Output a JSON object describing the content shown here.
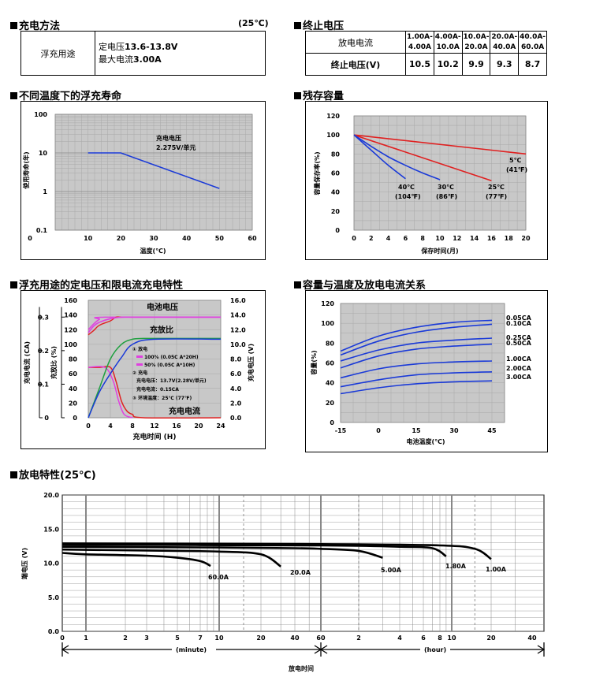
{
  "charging_method": {
    "title": "充电方法",
    "temp": "(25℃)",
    "row_label": "浮充用途",
    "line1_label": "定电压",
    "line1_value": "13.6-13.8V",
    "line2_label": "最大电流",
    "line2_value": "3.00A"
  },
  "cutoff_voltage": {
    "title": "终止电压",
    "row1_label": "放电电流",
    "row2_label": "终止电压(V)",
    "currents": [
      [
        "1.00A-",
        "4.00A"
      ],
      [
        "4.00A-",
        "10.0A"
      ],
      [
        "10.0A-",
        "20.0A"
      ],
      [
        "20.0A-",
        "40.0A"
      ],
      [
        "40.0A-",
        "60.0A"
      ]
    ],
    "voltages": [
      "10.5",
      "10.2",
      "9.9",
      "9.3",
      "8.7"
    ]
  },
  "float_life": {
    "title": "不同温度下的浮充寿命",
    "ylabel": "使用寿命(年)",
    "xlabel": "温度(℃)",
    "annotation_line1": "充电电压",
    "annotation_line2": "2.275V/单元",
    "y_ticks": [
      "100",
      "10",
      "1",
      "0.1"
    ],
    "x_ticks": [
      "10",
      "20",
      "30",
      "40",
      "50",
      "60"
    ]
  },
  "retention": {
    "title": "残存容量",
    "ylabel": "容量保存率(%)",
    "xlabel": "保存时间(月)",
    "y_ticks": [
      "120",
      "100",
      "80",
      "60",
      "40",
      "20",
      "0"
    ],
    "x_ticks": [
      "0",
      "2",
      "4",
      "6",
      "8",
      "10",
      "12",
      "14",
      "16",
      "18",
      "20"
    ],
    "labels": [
      {
        "c": "5℃",
        "f": "(41℉)"
      },
      {
        "c": "25℃",
        "f": "(77℉)"
      },
      {
        "c": "30℃",
        "f": "(86℉)"
      },
      {
        "c": "40℃",
        "f": "(104℉)"
      }
    ]
  },
  "float_charge": {
    "title": "浮充用途的定电压和限电流充电特性",
    "ylabel_current": "充电电流 (CA)",
    "ylabel_ratio": "充放比 (%)",
    "ylabel_voltage": "充电电压 (V)",
    "xlabel": "充电时间 (H)",
    "label_voltage": "电池电压",
    "label_ratio": "充放比",
    "label_current": "充电电流",
    "legend": [
      "① 放电",
      "100% (0.05C A*20H)",
      "50% (0.05C A*10H)",
      "② 充电",
      "充电电压：13.7V(2.28V/单元)",
      "充电电流：0.15CA",
      "③ 环境温度：25℃ (77℉)"
    ],
    "left_ticks_ratio": [
      "160",
      "140",
      "120",
      "100",
      "80",
      "60",
      "40",
      "20",
      "0"
    ],
    "left_ticks_current": [
      "0.3",
      "0.2",
      "0.1",
      "0"
    ],
    "right_ticks": [
      "16.0",
      "14.0",
      "12.0",
      "10.0",
      "8.0",
      "6.0",
      "4.0",
      "2.0",
      "0.0"
    ],
    "x_ticks": [
      "0",
      "4",
      "8",
      "12",
      "16",
      "20",
      "24"
    ]
  },
  "capacity_temp": {
    "title": "容量与温度及放电电流关系",
    "ylabel": "容量(%)",
    "xlabel": "电池温度(℃)",
    "y_ticks": [
      "120",
      "100",
      "80",
      "60",
      "40",
      "20",
      "0"
    ],
    "x_ticks": [
      "-15",
      "0",
      "15",
      "30",
      "45"
    ],
    "series_labels": [
      "0.05CA",
      "0.10CA",
      "0.25CA",
      "0.50CA",
      "1.00CA",
      "2.00CA",
      "3.00CA"
    ]
  },
  "discharge": {
    "title": "放电特性",
    "title_suffix": "(25℃)",
    "ylabel": "端电压 (V)",
    "xlabel": "放电时间",
    "unit_minute": "(minute)",
    "unit_hour": "(hour)",
    "y_ticks": [
      "20.0",
      "15.0",
      "10.0",
      "5.0",
      "0.0"
    ],
    "x_ticks_min": [
      "0",
      "1",
      "2",
      "3",
      "5",
      "7",
      "10",
      "20",
      "40",
      "60"
    ],
    "x_ticks_hour": [
      "2",
      "4",
      "6",
      "8",
      "10",
      "20",
      "40"
    ],
    "curve_labels": [
      "60.0A",
      "20.0A",
      "5.00A",
      "1.80A",
      "1.00A"
    ]
  },
  "chart_data": [
    {
      "type": "line",
      "title": "不同温度下的浮充寿命",
      "xlabel": "温度(℃)",
      "ylabel": "使用寿命(年)",
      "xlim": [
        0,
        60
      ],
      "ylim": [
        0.1,
        100
      ],
      "y_scale": "log",
      "grid": true,
      "series": [
        {
          "x": [
            10,
            20,
            50
          ],
          "y": [
            10,
            10,
            1.2
          ]
        }
      ]
    },
    {
      "type": "line",
      "title": "残存容量",
      "xlabel": "保存时间(月)",
      "ylabel": "容量保存率(%)",
      "xlim": [
        0,
        20
      ],
      "ylim": [
        0,
        120
      ],
      "grid": true,
      "series": [
        {
          "name": "5℃ (41℉)",
          "x": [
            0,
            20
          ],
          "y": [
            100,
            80
          ]
        },
        {
          "name": "25℃ (77℉)",
          "x": [
            0,
            16
          ],
          "y": [
            100,
            52
          ]
        },
        {
          "name": "30℃ (86℉)",
          "x": [
            0,
            2,
            4,
            6,
            8,
            10
          ],
          "y": [
            100,
            88,
            77,
            68,
            60,
            53
          ]
        },
        {
          "name": "40℃ (104℉)",
          "x": [
            0,
            2,
            4,
            6
          ],
          "y": [
            100,
            84,
            68,
            54
          ]
        }
      ]
    },
    {
      "type": "line",
      "title": "浮充用途的定电压和限电流充电特性",
      "xlabel": "充电时间 (H)",
      "xlim": [
        0,
        24
      ],
      "grid": true,
      "series": [
        {
          "name": "电池电压",
          "x": [
            0,
            1,
            2,
            4,
            6,
            8,
            12,
            24
          ],
          "y": [
            11.6,
            12.5,
            13,
            13.5,
            13.7,
            13.7,
            13.7,
            13.7
          ]
        },
        {
          "name": "充放比",
          "x": [
            0,
            2,
            4,
            6,
            8,
            10,
            12,
            24
          ],
          "y": [
            0,
            40,
            80,
            100,
            107,
            108,
            108,
            108
          ]
        },
        {
          "name": "充电电流",
          "x": [
            0,
            2,
            4,
            5,
            6,
            7,
            8,
            10,
            24
          ],
          "y": [
            0.15,
            0.15,
            0.15,
            0.11,
            0.05,
            0.02,
            0.01,
            0,
            0
          ]
        }
      ]
    },
    {
      "type": "line",
      "title": "容量与温度及放电电流关系",
      "xlabel": "电池温度(℃)",
      "ylabel": "容量(%)",
      "xlim": [
        -15,
        50
      ],
      "ylim": [
        0,
        120
      ],
      "grid": true,
      "series": [
        {
          "name": "0.05CA",
          "x": [
            -15,
            0,
            15,
            30,
            45
          ],
          "y": [
            72,
            87,
            96,
            101,
            103
          ]
        },
        {
          "name": "0.10CA",
          "x": [
            -15,
            0,
            15,
            30,
            45
          ],
          "y": [
            68,
            82,
            91,
            96,
            99
          ]
        },
        {
          "name": "0.25CA",
          "x": [
            -15,
            0,
            15,
            30,
            45
          ],
          "y": [
            62,
            73,
            80,
            83,
            85
          ]
        },
        {
          "name": "0.50CA",
          "x": [
            -15,
            0,
            15,
            30,
            45
          ],
          "y": [
            55,
            67,
            74,
            77,
            79
          ]
        },
        {
          "name": "1.00CA",
          "x": [
            -15,
            0,
            15,
            30,
            45
          ],
          "y": [
            45,
            54,
            59,
            61,
            62
          ]
        },
        {
          "name": "2.00CA",
          "x": [
            -15,
            0,
            15,
            30,
            45
          ],
          "y": [
            36,
            43,
            48,
            50,
            51
          ]
        },
        {
          "name": "3.00CA",
          "x": [
            -15,
            0,
            15,
            30,
            45
          ],
          "y": [
            29,
            35,
            39,
            41,
            42
          ]
        }
      ]
    },
    {
      "type": "line",
      "title": "放电特性(25℃)",
      "xlabel": "放电时间",
      "ylabel": "端电压 (V)",
      "ylim": [
        0,
        20
      ],
      "x_scale": "log",
      "grid": true,
      "series": [
        {
          "name": "60.0A",
          "x_minutes": [
            0,
            1,
            3,
            5,
            7,
            8.5
          ],
          "y": [
            11.5,
            11.3,
            11.1,
            10.8,
            10.3,
            9.6
          ]
        },
        {
          "name": "20.0A",
          "x_minutes": [
            0,
            5,
            10,
            20,
            30
          ],
          "y": [
            12.0,
            11.8,
            11.7,
            11.3,
            9.5
          ]
        },
        {
          "name": "5.00A",
          "x_minutes": [
            0,
            10,
            40,
            60,
            120,
            180
          ],
          "y": [
            12.4,
            12.3,
            12.2,
            12.1,
            11.8,
            10.8
          ]
        },
        {
          "name": "1.80A",
          "x_minutes": [
            0,
            60,
            240,
            420,
            540
          ],
          "y": [
            12.7,
            12.6,
            12.4,
            12.2,
            11.0
          ]
        },
        {
          "name": "1.00A",
          "x_minutes": [
            0,
            60,
            480,
            900,
            1200
          ],
          "y": [
            12.9,
            12.8,
            12.6,
            12.1,
            10.6
          ]
        }
      ]
    }
  ]
}
